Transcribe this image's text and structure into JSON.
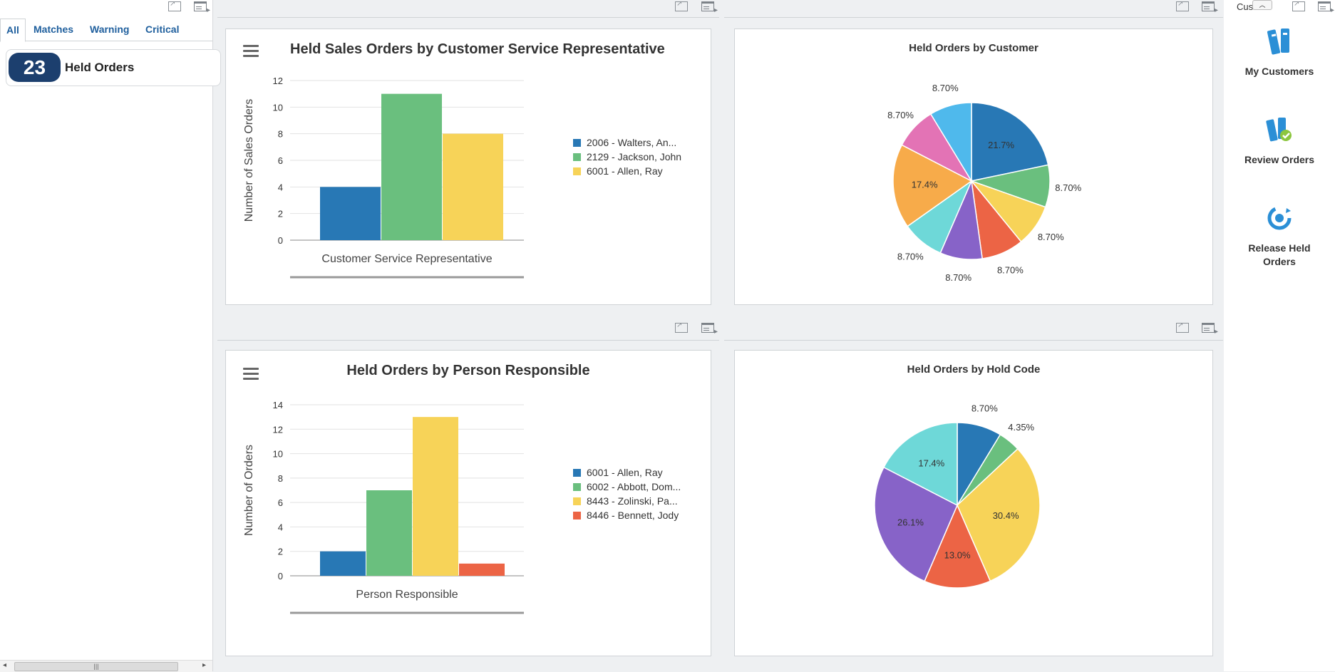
{
  "left_panel": {
    "tabs": [
      {
        "label": "All",
        "active": true
      },
      {
        "label": "Matches",
        "active": false
      },
      {
        "label": "Warning",
        "active": false
      },
      {
        "label": "Critical",
        "active": false
      }
    ],
    "held_orders": {
      "count": "23",
      "label": "Held Orders"
    }
  },
  "right_panel": {
    "header_text": "Custo...",
    "actions": [
      {
        "label": "My Customers",
        "icon": "binders-icon"
      },
      {
        "label": "Review Orders",
        "icon": "review-binders-icon"
      },
      {
        "label": "Release Held Orders",
        "icon": "release-cycle-icon"
      }
    ]
  },
  "colors": {
    "blue": "#2878b5",
    "green": "#6abf7e",
    "yellow": "#f7d358",
    "red": "#ec6445",
    "purple": "#8763c8",
    "cyan": "#6ed8d8",
    "orange": "#f7ab4a",
    "pink": "#e373b5",
    "sky": "#4fb9ec",
    "badge": "#1c3f6e"
  },
  "chart_data": [
    {
      "type": "bar",
      "title": "Held Sales Orders by Customer Service Representative",
      "xlabel": "Customer Service Representative",
      "ylabel": "Number of Sales Orders",
      "ylim": [
        0,
        12
      ],
      "yticks": [
        0,
        2,
        4,
        6,
        8,
        10,
        12
      ],
      "grid": true,
      "legend_position": "right",
      "series": [
        {
          "name": "2006 - Walters, An...",
          "value": 4,
          "color": "#2878b5"
        },
        {
          "name": "2129 - Jackson, John",
          "value": 11,
          "color": "#6abf7e"
        },
        {
          "name": "6001 - Allen, Ray",
          "value": 8,
          "color": "#f7d358"
        }
      ]
    },
    {
      "type": "pie",
      "title": "Held Orders by Customer",
      "slices": [
        {
          "label": "21.7%",
          "value": 21.7,
          "color": "#2878b5"
        },
        {
          "label": "8.70%",
          "value": 8.7,
          "color": "#6abf7e"
        },
        {
          "label": "8.70%",
          "value": 8.7,
          "color": "#f7d358"
        },
        {
          "label": "8.70%",
          "value": 8.7,
          "color": "#ec6445"
        },
        {
          "label": "8.70%",
          "value": 8.7,
          "color": "#8763c8"
        },
        {
          "label": "8.70%",
          "value": 8.7,
          "color": "#6ed8d8"
        },
        {
          "label": "17.4%",
          "value": 17.4,
          "color": "#f7ab4a"
        },
        {
          "label": "8.70%",
          "value": 8.7,
          "color": "#e373b5"
        },
        {
          "label": "8.70%",
          "value": 8.7,
          "color": "#4fb9ec"
        }
      ]
    },
    {
      "type": "bar",
      "title": "Held Orders by Person Responsible",
      "xlabel": "Person Responsible",
      "ylabel": "Number of Orders",
      "ylim": [
        0,
        14
      ],
      "yticks": [
        0,
        2,
        4,
        6,
        8,
        10,
        12,
        14
      ],
      "grid": true,
      "legend_position": "right",
      "series": [
        {
          "name": "6001 - Allen, Ray",
          "value": 2,
          "color": "#2878b5"
        },
        {
          "name": "6002 - Abbott, Dom...",
          "value": 7,
          "color": "#6abf7e"
        },
        {
          "name": "8443 - Zolinski, Pa...",
          "value": 13,
          "color": "#f7d358"
        },
        {
          "name": "8446 - Bennett, Jody",
          "value": 1,
          "color": "#ec6445"
        }
      ]
    },
    {
      "type": "pie",
      "title": "Held Orders by Hold Code",
      "slices": [
        {
          "label": "8.70%",
          "value": 8.7,
          "color": "#2878b5"
        },
        {
          "label": "4.35%",
          "value": 4.35,
          "color": "#6abf7e"
        },
        {
          "label": "30.4%",
          "value": 30.4,
          "color": "#f7d358"
        },
        {
          "label": "13.0%",
          "value": 13.0,
          "color": "#ec6445"
        },
        {
          "label": "26.1%",
          "value": 26.1,
          "color": "#8763c8"
        },
        {
          "label": "17.4%",
          "value": 17.4,
          "color": "#6ed8d8"
        }
      ]
    }
  ]
}
